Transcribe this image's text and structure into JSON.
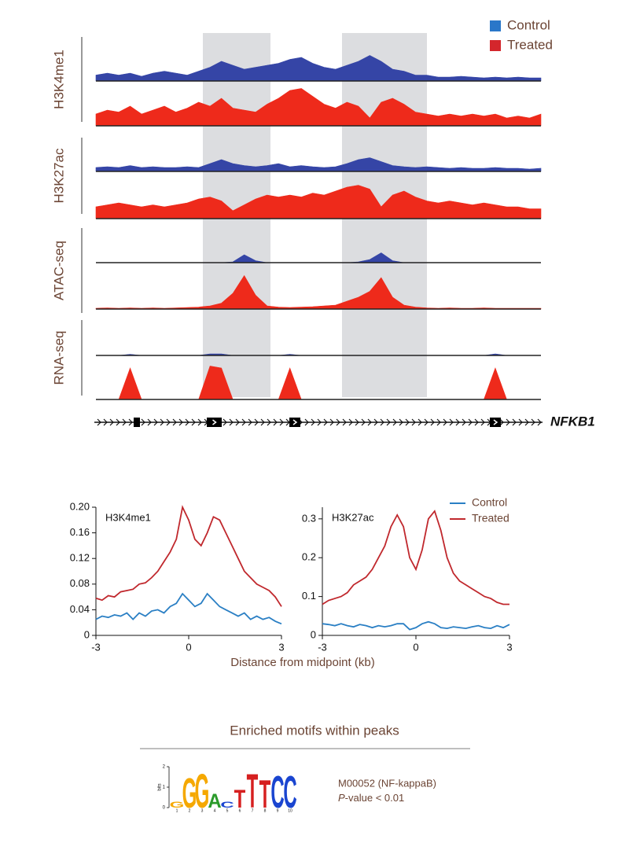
{
  "chart_data": [
    {
      "type": "track",
      "series": [
        {
          "name": "Control",
          "color": "#3545a6",
          "legend_color": "#2a77c9"
        },
        {
          "name": "Treated",
          "color": "#ee2a1b",
          "legend_color": "#d4262c"
        }
      ],
      "ylim": [
        0,
        1
      ],
      "tracks": [
        {
          "label": "H3K4me1",
          "values": [
            [
              0.15,
              0.2,
              0.15,
              0.2,
              0.12,
              0.2,
              0.25,
              0.2,
              0.15,
              0.25,
              0.35,
              0.5,
              0.4,
              0.3,
              0.35,
              0.4,
              0.45,
              0.55,
              0.6,
              0.45,
              0.35,
              0.3,
              0.4,
              0.5,
              0.65,
              0.5,
              0.3,
              0.25,
              0.15,
              0.15,
              0.1,
              0.1,
              0.12,
              0.1,
              0.08,
              0.1,
              0.08,
              0.1,
              0.08,
              0.08
            ],
            [
              0.3,
              0.4,
              0.35,
              0.5,
              0.3,
              0.4,
              0.5,
              0.35,
              0.45,
              0.6,
              0.5,
              0.7,
              0.45,
              0.4,
              0.35,
              0.55,
              0.7,
              0.9,
              0.95,
              0.75,
              0.55,
              0.45,
              0.6,
              0.5,
              0.2,
              0.6,
              0.7,
              0.55,
              0.35,
              0.3,
              0.25,
              0.3,
              0.25,
              0.3,
              0.25,
              0.3,
              0.2,
              0.25,
              0.2,
              0.3
            ]
          ]
        },
        {
          "label": "H3K27ac",
          "values": [
            [
              0.1,
              0.12,
              0.1,
              0.15,
              0.1,
              0.12,
              0.1,
              0.1,
              0.12,
              0.1,
              0.2,
              0.3,
              0.2,
              0.15,
              0.12,
              0.15,
              0.2,
              0.12,
              0.15,
              0.12,
              0.1,
              0.12,
              0.2,
              0.3,
              0.35,
              0.25,
              0.15,
              0.12,
              0.1,
              0.12,
              0.1,
              0.08,
              0.1,
              0.08,
              0.08,
              0.1,
              0.08,
              0.08,
              0.06,
              0.08
            ],
            [
              0.3,
              0.35,
              0.4,
              0.35,
              0.3,
              0.35,
              0.3,
              0.35,
              0.4,
              0.5,
              0.55,
              0.45,
              0.2,
              0.35,
              0.5,
              0.6,
              0.55,
              0.6,
              0.55,
              0.65,
              0.6,
              0.7,
              0.8,
              0.85,
              0.75,
              0.3,
              0.6,
              0.7,
              0.55,
              0.45,
              0.4,
              0.45,
              0.4,
              0.35,
              0.4,
              0.35,
              0.3,
              0.3,
              0.25,
              0.25
            ]
          ]
        },
        {
          "label": "ATAC-seq",
          "values": [
            [
              0,
              0,
              0,
              0,
              0,
              0,
              0,
              0,
              0,
              0,
              0,
              0,
              0.02,
              0.2,
              0.05,
              0,
              0,
              0,
              0,
              0,
              0,
              0,
              0,
              0.02,
              0.08,
              0.25,
              0.05,
              0,
              0,
              0,
              0,
              0,
              0,
              0,
              0,
              0,
              0,
              0,
              0,
              0
            ],
            [
              0.02,
              0.03,
              0.02,
              0.03,
              0.02,
              0.03,
              0.02,
              0.03,
              0.04,
              0.05,
              0.08,
              0.15,
              0.4,
              0.85,
              0.35,
              0.08,
              0.05,
              0.04,
              0.05,
              0.06,
              0.08,
              0.1,
              0.2,
              0.3,
              0.45,
              0.8,
              0.3,
              0.1,
              0.05,
              0.03,
              0.02,
              0.03,
              0.02,
              0.02,
              0.03,
              0.02,
              0.02,
              0.02,
              0.02,
              0.02
            ]
          ]
        },
        {
          "label": "RNA-seq",
          "values": [
            [
              0,
              0,
              0,
              0.03,
              0,
              0,
              0,
              0,
              0,
              0,
              0.04,
              0.04,
              0,
              0,
              0,
              0,
              0,
              0.03,
              0,
              0,
              0,
              0,
              0,
              0,
              0,
              0,
              0,
              0,
              0,
              0,
              0,
              0,
              0,
              0,
              0,
              0.04,
              0,
              0,
              0,
              0
            ],
            [
              0,
              0,
              0,
              0.8,
              0,
              0,
              0,
              0,
              0,
              0,
              0.85,
              0.8,
              0,
              0,
              0,
              0,
              0,
              0.8,
              0,
              0,
              0,
              0,
              0,
              0,
              0,
              0,
              0,
              0,
              0,
              0,
              0,
              0,
              0,
              0,
              0,
              0.8,
              0,
              0,
              0,
              0
            ]
          ]
        }
      ],
      "gene": "NFKB1"
    },
    {
      "type": "line",
      "title": "H3K4me1",
      "x": [
        -3,
        -2.8,
        -2.6,
        -2.4,
        -2.2,
        -2,
        -1.8,
        -1.6,
        -1.4,
        -1.2,
        -1,
        -0.8,
        -0.6,
        -0.4,
        -0.2,
        0,
        0.2,
        0.4,
        0.6,
        0.8,
        1,
        1.2,
        1.4,
        1.6,
        1.8,
        2,
        2.2,
        2.4,
        2.6,
        2.8,
        3
      ],
      "series": [
        {
          "color": "#2a7fc4",
          "values": [
            0.025,
            0.03,
            0.028,
            0.032,
            0.03,
            0.035,
            0.025,
            0.035,
            0.03,
            0.038,
            0.04,
            0.035,
            0.045,
            0.05,
            0.065,
            0.055,
            0.045,
            0.05,
            0.065,
            0.055,
            0.045,
            0.04,
            0.035,
            0.03,
            0.035,
            0.025,
            0.03,
            0.025,
            0.028,
            0.022,
            0.018
          ]
        },
        {
          "color": "#c0282d",
          "values": [
            0.058,
            0.055,
            0.062,
            0.06,
            0.068,
            0.07,
            0.072,
            0.08,
            0.082,
            0.09,
            0.1,
            0.115,
            0.13,
            0.15,
            0.2,
            0.18,
            0.15,
            0.14,
            0.16,
            0.185,
            0.18,
            0.16,
            0.14,
            0.12,
            0.1,
            0.09,
            0.08,
            0.075,
            0.07,
            0.06,
            0.045
          ]
        }
      ],
      "xlim": [
        -3,
        3
      ],
      "xticks": [
        -3,
        0,
        3
      ],
      "ylim": [
        0,
        0.2
      ],
      "yticks": [
        0,
        0.04,
        0.08,
        0.12,
        0.16,
        {
          "value": 0.2,
          "label": "0.20"
        }
      ],
      "xlabel": "Distance from midpoint (kb)"
    },
    {
      "type": "line",
      "title": "H3K27ac",
      "x": [
        -3,
        -2.8,
        -2.6,
        -2.4,
        -2.2,
        -2,
        -1.8,
        -1.6,
        -1.4,
        -1.2,
        -1,
        -0.8,
        -0.6,
        -0.4,
        -0.2,
        0,
        0.2,
        0.4,
        0.6,
        0.8,
        1,
        1.2,
        1.4,
        1.6,
        1.8,
        2,
        2.2,
        2.4,
        2.6,
        2.8,
        3
      ],
      "series": [
        {
          "name": "Control",
          "color": "#2a7fc4",
          "values": [
            0.03,
            0.028,
            0.025,
            0.03,
            0.025,
            0.022,
            0.028,
            0.025,
            0.02,
            0.025,
            0.022,
            0.025,
            0.03,
            0.03,
            0.015,
            0.02,
            0.03,
            0.035,
            0.03,
            0.02,
            0.018,
            0.022,
            0.02,
            0.018,
            0.022,
            0.025,
            0.02,
            0.018,
            0.025,
            0.02,
            0.028
          ]
        },
        {
          "name": "Treated",
          "color": "#c0282d",
          "values": [
            0.08,
            0.09,
            0.095,
            0.1,
            0.11,
            0.13,
            0.14,
            0.15,
            0.17,
            0.2,
            0.23,
            0.28,
            0.31,
            0.28,
            0.2,
            0.17,
            0.22,
            0.3,
            0.32,
            0.27,
            0.2,
            0.16,
            0.14,
            0.13,
            0.12,
            0.11,
            0.1,
            0.095,
            0.085,
            0.08,
            0.08
          ]
        }
      ],
      "xlim": [
        -3,
        3
      ],
      "xticks": [
        -3,
        0,
        3
      ],
      "ylim": [
        0,
        0.33
      ],
      "yticks": [
        0,
        0.1,
        0.2,
        0.3
      ]
    }
  ],
  "motif": {
    "title": "Enriched motifs within peaks",
    "logo": {
      "ylabel": "bits",
      "ylim": [
        0,
        2
      ],
      "yticks": [
        0,
        1,
        2
      ],
      "colors": {
        "A": "#2a9a2a",
        "C": "#1a45d0",
        "G": "#f5a800",
        "T": "#d62020"
      },
      "positions": [
        1,
        2,
        3,
        4,
        5,
        6,
        7,
        8,
        9,
        10
      ],
      "letters": [
        {
          "letter": "G",
          "height": 0.3
        },
        {
          "letter": "G",
          "height": 1.5
        },
        {
          "letter": "G",
          "height": 1.7
        },
        {
          "letter": "A",
          "height": 0.7
        },
        {
          "letter": "C",
          "height": 0.3
        },
        {
          "letter": "T",
          "height": 0.9
        },
        {
          "letter": "T",
          "height": 1.7
        },
        {
          "letter": "T",
          "height": 1.4
        },
        {
          "letter": "C",
          "height": 1.6
        },
        {
          "letter": "C",
          "height": 1.6
        }
      ]
    },
    "id": "M00052 (NF-kappaB)",
    "pvalue_symbol": "P",
    "pvalue_text": "-value < 0.01"
  }
}
